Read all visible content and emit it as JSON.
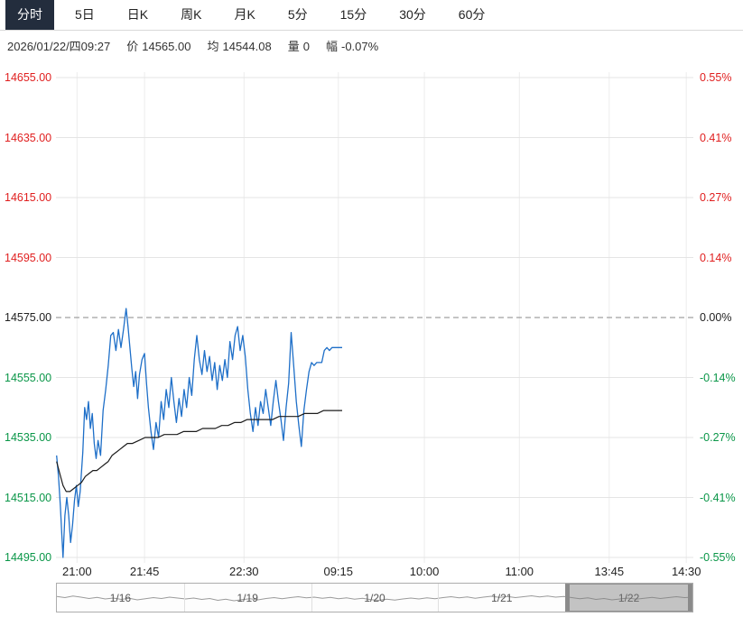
{
  "colors": {
    "up": "#e01f1f",
    "down": "#0a9648",
    "flat": "#222222",
    "price_line": "#1e6fc8",
    "avg_line": "#1c1c1c",
    "active_tab_bg": "#232d3d",
    "grid": "#e4e4e4",
    "grid_vertical": "#ececec",
    "preclose_dash": "#8a8a8a",
    "nav_spark": "#9a9a9a"
  },
  "tabs": {
    "items": [
      {
        "id": "fenshi",
        "label": "分时",
        "active": true
      },
      {
        "id": "5day",
        "label": "5日",
        "active": false
      },
      {
        "id": "daily-k",
        "label": "日K",
        "active": false
      },
      {
        "id": "weekly-k",
        "label": "周K",
        "active": false
      },
      {
        "id": "monthly-k",
        "label": "月K",
        "active": false
      },
      {
        "id": "5min",
        "label": "5分",
        "active": false
      },
      {
        "id": "15min",
        "label": "15分",
        "active": false
      },
      {
        "id": "30min",
        "label": "30分",
        "active": false
      },
      {
        "id": "60min",
        "label": "60分",
        "active": false
      }
    ]
  },
  "info": {
    "datetime": "2026/01/22/四09:27",
    "price_label": "价",
    "price_value": "14565.00",
    "avg_label": "均",
    "avg_value": "14544.08",
    "volume_label": "量",
    "volume_value": "0",
    "change_label": "幅",
    "change_value": "-0.07%"
  },
  "chart_data": {
    "type": "line",
    "title": "intraday time-sharing chart (分时)",
    "ylim": [
      14495,
      14655
    ],
    "preclose": 14575,
    "grid": true,
    "levels": [
      {
        "value": 14655,
        "price": "14655.00",
        "pct": "0.55%",
        "tone": "up"
      },
      {
        "value": 14635,
        "price": "14635.00",
        "pct": "0.41%",
        "tone": "up"
      },
      {
        "value": 14615,
        "price": "14615.00",
        "pct": "0.27%",
        "tone": "up"
      },
      {
        "value": 14595,
        "price": "14595.00",
        "pct": "0.14%",
        "tone": "up"
      },
      {
        "value": 14575,
        "price": "14575.00",
        "pct": "0.00%",
        "tone": "flat"
      },
      {
        "value": 14555,
        "price": "14555.00",
        "pct": "-0.14%",
        "tone": "down"
      },
      {
        "value": 14535,
        "price": "14535.00",
        "pct": "-0.27%",
        "tone": "down"
      },
      {
        "value": 14515,
        "price": "14515.00",
        "pct": "-0.41%",
        "tone": "down"
      },
      {
        "value": 14495,
        "price": "14495.00",
        "pct": "-0.55%",
        "tone": "down"
      }
    ],
    "x_ticks": [
      {
        "label": "21:00",
        "pos": 0.033
      },
      {
        "label": "21:45",
        "pos": 0.139
      },
      {
        "label": "22:30",
        "pos": 0.295
      },
      {
        "label": "09:15",
        "pos": 0.443
      },
      {
        "label": "10:00",
        "pos": 0.578
      },
      {
        "label": "11:00",
        "pos": 0.727
      },
      {
        "label": "13:45",
        "pos": 0.868
      },
      {
        "label": "14:30",
        "pos": 0.989
      }
    ],
    "series": [
      {
        "name": "price",
        "color_key": "price_line",
        "points": [
          [
            0.001,
            14529
          ],
          [
            0.004,
            14522
          ],
          [
            0.007,
            14512
          ],
          [
            0.009,
            14503
          ],
          [
            0.011,
            14495
          ],
          [
            0.014,
            14509
          ],
          [
            0.017,
            14515
          ],
          [
            0.02,
            14509
          ],
          [
            0.023,
            14500
          ],
          [
            0.026,
            14506
          ],
          [
            0.029,
            14514
          ],
          [
            0.032,
            14519
          ],
          [
            0.035,
            14512
          ],
          [
            0.038,
            14517
          ],
          [
            0.042,
            14530
          ],
          [
            0.045,
            14545
          ],
          [
            0.048,
            14541
          ],
          [
            0.051,
            14547
          ],
          [
            0.054,
            14538
          ],
          [
            0.057,
            14543
          ],
          [
            0.06,
            14533
          ],
          [
            0.063,
            14528
          ],
          [
            0.066,
            14534
          ],
          [
            0.07,
            14529
          ],
          [
            0.074,
            14544
          ],
          [
            0.078,
            14551
          ],
          [
            0.082,
            14559
          ],
          [
            0.086,
            14569
          ],
          [
            0.09,
            14570
          ],
          [
            0.094,
            14564
          ],
          [
            0.098,
            14571
          ],
          [
            0.102,
            14565
          ],
          [
            0.106,
            14571
          ],
          [
            0.11,
            14578
          ],
          [
            0.113,
            14572
          ],
          [
            0.116,
            14565
          ],
          [
            0.119,
            14558
          ],
          [
            0.122,
            14552
          ],
          [
            0.125,
            14557
          ],
          [
            0.128,
            14548
          ],
          [
            0.131,
            14556
          ],
          [
            0.135,
            14561
          ],
          [
            0.139,
            14563
          ],
          [
            0.142,
            14553
          ],
          [
            0.145,
            14545
          ],
          [
            0.149,
            14537
          ],
          [
            0.153,
            14531
          ],
          [
            0.157,
            14540
          ],
          [
            0.161,
            14535
          ],
          [
            0.165,
            14547
          ],
          [
            0.169,
            14541
          ],
          [
            0.173,
            14551
          ],
          [
            0.177,
            14545
          ],
          [
            0.181,
            14555
          ],
          [
            0.185,
            14547
          ],
          [
            0.189,
            14540
          ],
          [
            0.193,
            14548
          ],
          [
            0.197,
            14542
          ],
          [
            0.201,
            14551
          ],
          [
            0.205,
            14545
          ],
          [
            0.209,
            14555
          ],
          [
            0.213,
            14549
          ],
          [
            0.217,
            14561
          ],
          [
            0.221,
            14569
          ],
          [
            0.225,
            14561
          ],
          [
            0.229,
            14556
          ],
          [
            0.233,
            14564
          ],
          [
            0.237,
            14557
          ],
          [
            0.241,
            14562
          ],
          [
            0.245,
            14554
          ],
          [
            0.249,
            14560
          ],
          [
            0.253,
            14551
          ],
          [
            0.257,
            14559
          ],
          [
            0.261,
            14554
          ],
          [
            0.265,
            14561
          ],
          [
            0.269,
            14555
          ],
          [
            0.273,
            14567
          ],
          [
            0.277,
            14561
          ],
          [
            0.281,
            14569
          ],
          [
            0.285,
            14572
          ],
          [
            0.289,
            14564
          ],
          [
            0.293,
            14569
          ],
          [
            0.297,
            14562
          ],
          [
            0.301,
            14551
          ],
          [
            0.305,
            14543
          ],
          [
            0.309,
            14537
          ],
          [
            0.313,
            14545
          ],
          [
            0.317,
            14539
          ],
          [
            0.321,
            14547
          ],
          [
            0.325,
            14543
          ],
          [
            0.329,
            14551
          ],
          [
            0.333,
            14545
          ],
          [
            0.337,
            14539
          ],
          [
            0.341,
            14547
          ],
          [
            0.345,
            14554
          ],
          [
            0.349,
            14547
          ],
          [
            0.353,
            14541
          ],
          [
            0.357,
            14534
          ],
          [
            0.361,
            14545
          ],
          [
            0.365,
            14553
          ],
          [
            0.369,
            14570
          ],
          [
            0.373,
            14559
          ],
          [
            0.377,
            14547
          ],
          [
            0.381,
            14539
          ],
          [
            0.385,
            14532
          ],
          [
            0.389,
            14544
          ],
          [
            0.393,
            14551
          ],
          [
            0.397,
            14557
          ],
          [
            0.401,
            14560
          ],
          [
            0.405,
            14559
          ],
          [
            0.409,
            14560
          ],
          [
            0.413,
            14560
          ],
          [
            0.417,
            14560
          ],
          [
            0.421,
            14564
          ],
          [
            0.425,
            14565
          ],
          [
            0.429,
            14564
          ],
          [
            0.433,
            14565
          ],
          [
            0.437,
            14565
          ],
          [
            0.441,
            14565
          ],
          [
            0.445,
            14565
          ],
          [
            0.449,
            14565
          ]
        ]
      },
      {
        "name": "average",
        "color_key": "avg_line",
        "points": [
          [
            0.001,
            14527
          ],
          [
            0.006,
            14523
          ],
          [
            0.011,
            14519
          ],
          [
            0.016,
            14517
          ],
          [
            0.022,
            14517
          ],
          [
            0.028,
            14518
          ],
          [
            0.034,
            14519
          ],
          [
            0.04,
            14520
          ],
          [
            0.046,
            14522
          ],
          [
            0.052,
            14523
          ],
          [
            0.058,
            14524
          ],
          [
            0.064,
            14524
          ],
          [
            0.07,
            14525
          ],
          [
            0.076,
            14526
          ],
          [
            0.082,
            14527
          ],
          [
            0.088,
            14529
          ],
          [
            0.094,
            14530
          ],
          [
            0.1,
            14531
          ],
          [
            0.106,
            14532
          ],
          [
            0.112,
            14533
          ],
          [
            0.12,
            14533
          ],
          [
            0.13,
            14534
          ],
          [
            0.14,
            14535
          ],
          [
            0.15,
            14535
          ],
          [
            0.16,
            14535
          ],
          [
            0.17,
            14536
          ],
          [
            0.18,
            14536
          ],
          [
            0.19,
            14536
          ],
          [
            0.2,
            14537
          ],
          [
            0.21,
            14537
          ],
          [
            0.22,
            14537
          ],
          [
            0.23,
            14538
          ],
          [
            0.24,
            14538
          ],
          [
            0.25,
            14538
          ],
          [
            0.26,
            14539
          ],
          [
            0.27,
            14539
          ],
          [
            0.28,
            14540
          ],
          [
            0.29,
            14540
          ],
          [
            0.3,
            14541
          ],
          [
            0.31,
            14541
          ],
          [
            0.32,
            14541
          ],
          [
            0.33,
            14541
          ],
          [
            0.34,
            14541
          ],
          [
            0.35,
            14542
          ],
          [
            0.36,
            14542
          ],
          [
            0.37,
            14542
          ],
          [
            0.38,
            14542
          ],
          [
            0.39,
            14543
          ],
          [
            0.4,
            14543
          ],
          [
            0.41,
            14543
          ],
          [
            0.42,
            14544
          ],
          [
            0.43,
            14544
          ],
          [
            0.44,
            14544
          ],
          [
            0.449,
            14544
          ]
        ]
      }
    ]
  },
  "navigator": {
    "dates": [
      "1/16",
      "1/19",
      "1/20",
      "1/21",
      "1/22"
    ],
    "selected_index": 4,
    "spark": [
      0.55,
      0.5,
      0.57,
      0.52,
      0.46,
      0.51,
      0.44,
      0.48,
      0.42,
      0.47,
      0.4,
      0.45,
      0.5,
      0.46,
      0.52,
      0.48,
      0.44,
      0.48,
      0.42,
      0.46,
      0.38,
      0.43,
      0.36,
      0.41,
      0.45,
      0.4,
      0.46,
      0.5,
      0.45,
      0.5,
      0.54,
      0.49,
      0.52,
      0.47,
      0.51,
      0.45,
      0.49,
      0.43,
      0.47,
      0.41,
      0.38,
      0.43,
      0.39,
      0.44,
      0.48,
      0.44,
      0.49,
      0.45,
      0.5,
      0.54,
      0.49,
      0.53,
      0.47,
      0.52,
      0.56,
      0.51,
      0.55,
      0.5,
      0.54,
      0.58,
      0.53,
      0.57,
      0.52,
      0.55,
      0.5,
      0.45,
      0.49,
      0.42,
      0.46,
      0.4,
      0.44,
      0.48,
      0.43,
      0.47,
      0.51,
      0.46,
      0.5,
      0.54,
      0.5,
      0.52
    ]
  }
}
